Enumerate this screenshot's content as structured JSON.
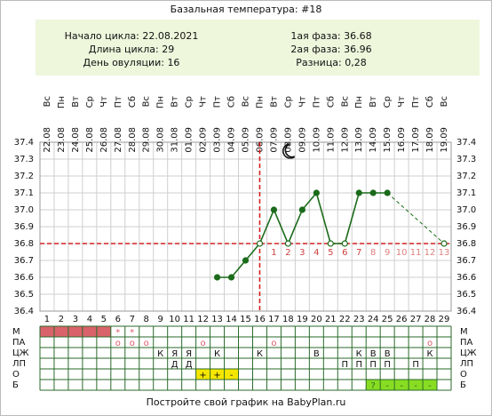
{
  "chart_data": {
    "type": "line",
    "title": "Базальная температура: #18",
    "info": {
      "left": [
        "Начало цикла: 22.08.2021",
        "Длина цикла: 29",
        "День овуляции: 16"
      ],
      "right": [
        "1ая фаза: 36.68",
        "2ая фаза: 36.96",
        "Разница: 0,28"
      ]
    },
    "categories": [
      1,
      2,
      3,
      4,
      5,
      6,
      7,
      8,
      9,
      10,
      11,
      12,
      13,
      14,
      15,
      16,
      17,
      18,
      19,
      20,
      21,
      22,
      23,
      24,
      25,
      26,
      27,
      28,
      29
    ],
    "dates": [
      "22.08",
      "23.08",
      "24.08",
      "25.08",
      "26.08",
      "27.08",
      "28.08",
      "29.08",
      "30.08",
      "31.08",
      "01.09",
      "02.09",
      "03.09",
      "04.09",
      "05.09",
      "06.09",
      "07.09",
      "08.09",
      "09.09",
      "10.09",
      "11.09",
      "12.09",
      "13.09",
      "14.09",
      "15.09",
      "16.09",
      "17.09",
      "18.09",
      "19.09"
    ],
    "weekdays": [
      "Вс",
      "Пн",
      "Вт",
      "Ср",
      "Чт",
      "Пт",
      "Сб",
      "Вс",
      "Пн",
      "Вт",
      "Ср",
      "Чт",
      "Пт",
      "Сб",
      "Вс",
      "Пн",
      "Вт",
      "Ср",
      "Чт",
      "Пт",
      "Сб",
      "Вс",
      "Пн",
      "Вт",
      "Ср",
      "Чт",
      "Пт",
      "Сб",
      "Вс"
    ],
    "series": [
      {
        "color": "#1a6b1a",
        "values": [
          null,
          null,
          null,
          null,
          null,
          null,
          null,
          null,
          null,
          null,
          null,
          null,
          36.6,
          36.6,
          36.7,
          36.8,
          37.0,
          36.8,
          37.0,
          37.1,
          36.8,
          36.8,
          37.1,
          37.1,
          37.1,
          null,
          null,
          null,
          36.8
        ]
      }
    ],
    "bridge_gaps": true,
    "ylim": [
      36.4,
      37.4
    ],
    "yticks": [
      36.4,
      36.5,
      36.6,
      36.7,
      36.8,
      36.9,
      {
        "value": 37,
        "label": "37.0"
      },
      37.1,
      37.2,
      37.3,
      37.4
    ],
    "grid": true,
    "coverline": 36.8,
    "ovulation_day": 16,
    "marker_color": "#d42020",
    "phase_days": [
      1,
      2,
      3,
      4,
      5,
      6,
      7,
      8,
      9,
      10,
      11,
      12,
      13
    ],
    "rows": [
      {
        "label": "М",
        "color": "#e05a6a",
        "cells": [
          null,
          null,
          null,
          null,
          null,
          "*",
          "*",
          null,
          null,
          null,
          null,
          null,
          null,
          null,
          null,
          null,
          null,
          null,
          null,
          null,
          null,
          null,
          null,
          null,
          null,
          null,
          null,
          null,
          null
        ],
        "fills": [
          "#d9626b",
          "#d9626b",
          "#d9626b",
          "#d9626b",
          "#d9626b",
          null,
          null,
          null,
          null,
          null,
          null,
          null,
          null,
          null,
          null,
          null,
          null,
          null,
          null,
          null,
          null,
          null,
          null,
          null,
          null,
          null,
          null,
          null,
          null
        ]
      },
      {
        "label": "ПА",
        "color": "#e05a6a",
        "cells": [
          null,
          null,
          null,
          null,
          null,
          "о",
          "о",
          "о",
          null,
          null,
          null,
          "о",
          null,
          null,
          null,
          null,
          "о",
          null,
          null,
          null,
          null,
          null,
          null,
          null,
          null,
          null,
          null,
          "о",
          null
        ]
      },
      {
        "label": "ЦЖ",
        "color": "#111111",
        "cells": [
          null,
          null,
          null,
          null,
          null,
          null,
          null,
          null,
          "К",
          "Я",
          "Я",
          null,
          "К",
          null,
          null,
          "К",
          null,
          null,
          null,
          "В",
          null,
          null,
          "К",
          "В",
          "В",
          null,
          null,
          "К",
          null
        ]
      },
      {
        "label": "ЛП",
        "color": "#111111",
        "cells": [
          null,
          null,
          null,
          null,
          null,
          null,
          null,
          null,
          null,
          "Д",
          "Д",
          null,
          null,
          null,
          null,
          null,
          null,
          null,
          null,
          null,
          null,
          "П",
          "П",
          "П",
          "П",
          null,
          "П",
          null,
          null
        ]
      },
      {
        "label": "О",
        "color": "#111111",
        "cells": [
          null,
          null,
          null,
          null,
          null,
          null,
          null,
          null,
          null,
          null,
          null,
          "+",
          "+",
          "-",
          null,
          null,
          null,
          null,
          null,
          null,
          null,
          null,
          null,
          null,
          null,
          null,
          null,
          null,
          null
        ],
        "fills": [
          null,
          null,
          null,
          null,
          null,
          null,
          null,
          null,
          null,
          null,
          null,
          "#f5e600",
          "#f5e600",
          "#f5e600",
          null,
          null,
          null,
          null,
          null,
          null,
          null,
          null,
          null,
          null,
          null,
          null,
          null,
          null,
          null
        ]
      },
      {
        "label": "Б",
        "color": "#2a6a2a",
        "cells": [
          null,
          null,
          null,
          null,
          null,
          null,
          null,
          null,
          null,
          null,
          null,
          null,
          null,
          null,
          null,
          null,
          null,
          null,
          null,
          null,
          null,
          null,
          null,
          "?",
          "-",
          "-",
          "-",
          "-",
          null
        ],
        "fills": [
          null,
          null,
          null,
          null,
          null,
          null,
          null,
          null,
          null,
          null,
          null,
          null,
          null,
          null,
          null,
          null,
          null,
          null,
          null,
          null,
          null,
          null,
          null,
          "#88dd22",
          "#88dd22",
          "#88dd22",
          "#88dd22",
          "#88dd22",
          null
        ]
      }
    ],
    "footer": "Постройте свой график на BabyPlan.ru"
  }
}
